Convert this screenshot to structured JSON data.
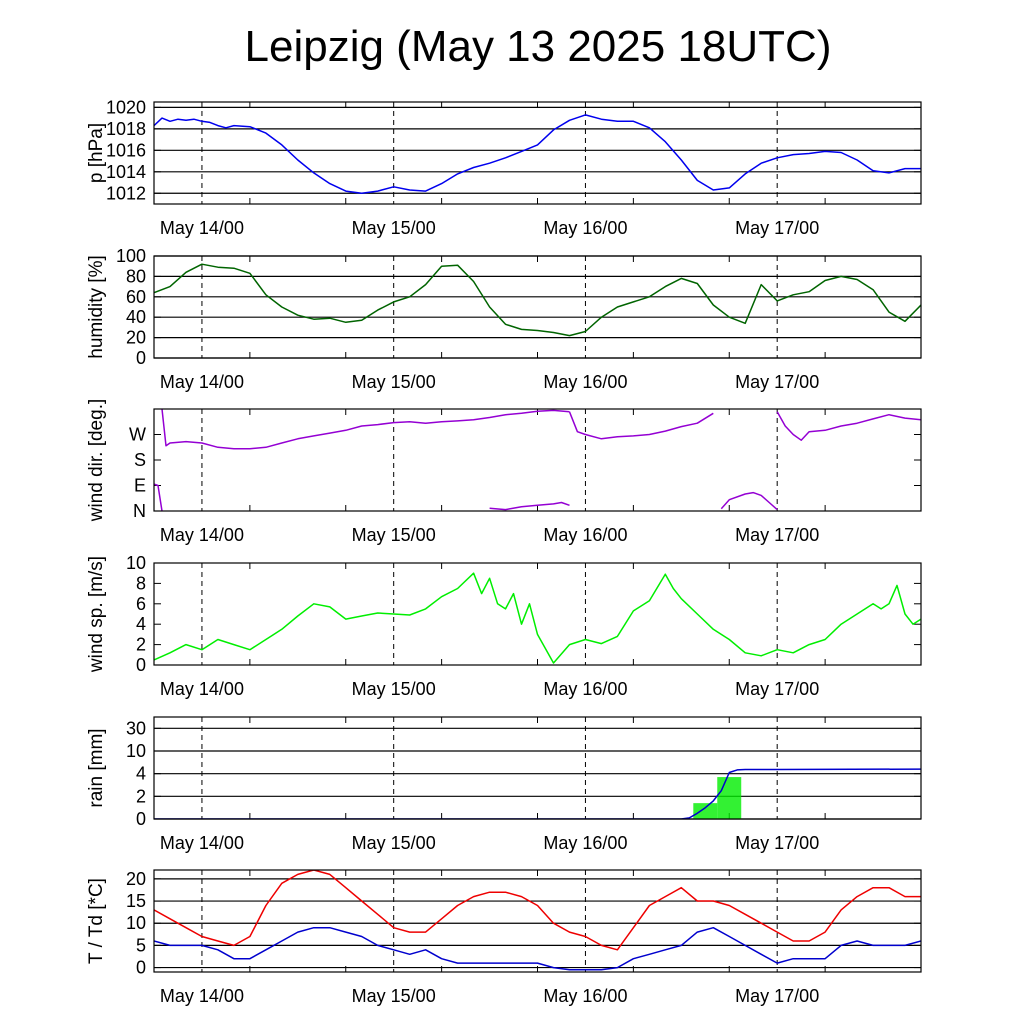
{
  "title": "Leipzig (May 13 2025 18UTC)",
  "x_axis": {
    "start": "May 13 18:00",
    "end": "May 17 18:00",
    "ticks": [
      "May 14/00",
      "May 15/00",
      "May 16/00",
      "May 17/00"
    ],
    "tick_hours": [
      6,
      30,
      54,
      78
    ],
    "total_hours": 96
  },
  "chart_data": [
    {
      "type": "line",
      "ylabel": "p [hPa]",
      "ylim": [
        1011,
        1020.5
      ],
      "yticks": [
        1012,
        1014,
        1016,
        1018,
        1020
      ],
      "grid": true,
      "series": [
        {
          "color": "#0000ee",
          "x": [
            0,
            1,
            2,
            3,
            4,
            5,
            6,
            7,
            8,
            9,
            10,
            12,
            14,
            16,
            18,
            20,
            22,
            24,
            26,
            28,
            30,
            32,
            34,
            36,
            38,
            40,
            42,
            44,
            46,
            48,
            50,
            52,
            54,
            56,
            58,
            60,
            62,
            64,
            66,
            68,
            70,
            72,
            74,
            76,
            78,
            80,
            82,
            84,
            86,
            88,
            90,
            92,
            94,
            96
          ],
          "y": [
            1018.3,
            1019.0,
            1018.7,
            1018.9,
            1018.8,
            1018.9,
            1018.7,
            1018.6,
            1018.3,
            1018.1,
            1018.3,
            1018.2,
            1017.6,
            1016.5,
            1015.1,
            1013.9,
            1012.9,
            1012.2,
            1012.0,
            1012.2,
            1012.6,
            1012.3,
            1012.2,
            1012.9,
            1013.8,
            1014.4,
            1014.8,
            1015.3,
            1015.9,
            1016.5,
            1017.9,
            1018.8,
            1019.3,
            1018.9,
            1018.7,
            1018.7,
            1018.1,
            1016.8,
            1015.1,
            1013.2,
            1012.3,
            1012.5,
            1013.8,
            1014.8,
            1015.3,
            1015.6,
            1015.7,
            1015.9,
            1015.8,
            1015.1,
            1014.1,
            1013.9,
            1014.3,
            1014.3
          ]
        }
      ]
    },
    {
      "type": "line",
      "ylabel": "humidity [%]",
      "ylim": [
        0,
        100
      ],
      "yticks": [
        0,
        20,
        40,
        60,
        80,
        100
      ],
      "grid": true,
      "series": [
        {
          "color": "#006400",
          "x": [
            0,
            2,
            4,
            6,
            8,
            10,
            12,
            14,
            16,
            18,
            20,
            22,
            24,
            26,
            28,
            30,
            32,
            34,
            36,
            38,
            40,
            42,
            44,
            46,
            48,
            50,
            52,
            54,
            56,
            58,
            60,
            62,
            64,
            66,
            68,
            70,
            72,
            74,
            76,
            78,
            80,
            82,
            84,
            86,
            88,
            90,
            92,
            94,
            96
          ],
          "y": [
            64,
            70,
            84,
            92,
            89,
            88,
            83,
            62,
            50,
            42,
            38,
            39,
            35,
            37,
            47,
            55,
            60,
            72,
            90,
            91,
            75,
            50,
            33,
            28,
            27,
            25,
            22,
            26,
            40,
            50,
            55,
            60,
            70,
            78,
            73,
            52,
            40,
            34,
            72,
            56,
            62,
            65,
            76,
            80,
            77,
            67,
            45,
            36,
            52
          ]
        }
      ]
    },
    {
      "type": "line",
      "ylabel": "wind dir. [deg.]",
      "ylim": [
        0,
        360
      ],
      "yticks": [
        0,
        90,
        180,
        270
      ],
      "ytick_labels": [
        "N",
        "E",
        "S",
        "W"
      ],
      "grid": false,
      "series": [
        {
          "color": "#9400d3",
          "segments": [
            {
              "x": [
                0,
                0.5,
                1
              ],
              "y": [
                95,
                90,
                0
              ]
            },
            {
              "x": [
                1,
                1.5,
                2,
                4,
                6,
                8,
                10,
                12,
                14,
                16,
                18,
                20,
                22,
                24,
                26,
                28,
                30,
                32,
                34,
                36,
                38,
                40,
                42,
                44,
                46,
                48,
                50,
                52
              ],
              "y": [
                360,
                230,
                240,
                245,
                240,
                225,
                220,
                220,
                225,
                240,
                255,
                265,
                275,
                285,
                300,
                305,
                312,
                315,
                310,
                315,
                318,
                322,
                330,
                340,
                345,
                352,
                355,
                350
              ]
            },
            {
              "x": [
                42,
                44,
                46,
                48,
                50,
                51,
                52
              ],
              "y": [
                10,
                5,
                15,
                20,
                25,
                30,
                20
              ]
            },
            {
              "x": [
                52,
                53,
                54,
                56,
                58,
                60,
                62,
                64,
                66,
                68,
                70
              ],
              "y": [
                350,
                280,
                270,
                255,
                262,
                265,
                270,
                282,
                298,
                310,
                345
              ]
            },
            {
              "x": [
                71,
                72,
                74,
                75,
                76,
                77,
                78
              ],
              "y": [
                8,
                40,
                60,
                65,
                55,
                30,
                5
              ]
            },
            {
              "x": [
                78,
                79,
                80,
                81,
                82,
                84,
                86,
                88,
                90,
                92,
                94,
                96
              ],
              "y": [
                350,
                300,
                270,
                250,
                280,
                285,
                300,
                310,
                325,
                340,
                328,
                322
              ]
            }
          ]
        }
      ]
    },
    {
      "type": "line",
      "ylabel": "wind sp. [m/s]",
      "ylim": [
        0,
        10
      ],
      "yticks": [
        0,
        2,
        4,
        6,
        8,
        10
      ],
      "grid": false,
      "series": [
        {
          "color": "#00ee00",
          "x": [
            0,
            2,
            4,
            6,
            8,
            10,
            12,
            14,
            16,
            18,
            20,
            22,
            24,
            26,
            28,
            30,
            32,
            34,
            36,
            38,
            40,
            41,
            42,
            43,
            44,
            45,
            46,
            47,
            48,
            50,
            52,
            54,
            56,
            58,
            60,
            62,
            64,
            65,
            66,
            68,
            70,
            72,
            74,
            76,
            78,
            80,
            82,
            84,
            86,
            88,
            90,
            91,
            92,
            93,
            94,
            95,
            96
          ],
          "y": [
            0.5,
            1.2,
            2.0,
            1.5,
            2.5,
            2.0,
            1.5,
            2.5,
            3.5,
            4.8,
            6.0,
            5.7,
            4.5,
            4.8,
            5.1,
            5.0,
            4.9,
            5.5,
            6.7,
            7.5,
            9.0,
            7.0,
            8.5,
            6.0,
            5.5,
            7.0,
            4.0,
            6.0,
            3.0,
            0.2,
            2.0,
            2.5,
            2.1,
            2.8,
            5.3,
            6.3,
            8.9,
            7.5,
            6.5,
            5.0,
            3.5,
            2.5,
            1.2,
            0.9,
            1.5,
            1.2,
            2.0,
            2.5,
            4.0,
            5.0,
            6.0,
            5.5,
            6.0,
            7.8,
            5.0,
            4.0,
            4.5
          ]
        }
      ]
    },
    {
      "type": "bar",
      "ylabel": "rain [mm]",
      "ytick_labels": [
        "0",
        "2",
        "4",
        "10",
        "30"
      ],
      "grid": true,
      "series": [
        {
          "color": "#00ee00",
          "bars": [
            {
              "x_start": 67.5,
              "x_end": 70.5,
              "value": 1.4
            },
            {
              "x_start": 70.5,
              "x_end": 73.5,
              "value": 3.7
            }
          ]
        },
        {
          "color": "#0000cd",
          "type": "line",
          "x": [
            0,
            66,
            67,
            68,
            69,
            70,
            71,
            72,
            73,
            74,
            78,
            96
          ],
          "y": [
            0,
            0,
            0.1,
            0.5,
            1.0,
            1.6,
            2.5,
            4.3,
            5.0,
            5.1,
            5.1,
            5.2
          ]
        }
      ]
    },
    {
      "type": "line",
      "ylabel": "T / Td [*C]",
      "ylim": [
        -1,
        22
      ],
      "yticks": [
        0,
        5,
        10,
        15,
        20
      ],
      "grid": true,
      "series": [
        {
          "color": "#ee0000",
          "x": [
            0,
            2,
            4,
            6,
            8,
            10,
            12,
            14,
            16,
            18,
            20,
            22,
            24,
            26,
            28,
            30,
            32,
            34,
            36,
            38,
            40,
            42,
            44,
            46,
            48,
            50,
            52,
            54,
            56,
            58,
            60,
            62,
            64,
            66,
            68,
            70,
            72,
            74,
            76,
            78,
            80,
            82,
            84,
            86,
            88,
            90,
            92,
            94,
            96
          ],
          "y": [
            13,
            11,
            9,
            7,
            6,
            5,
            7,
            14,
            19,
            21,
            22,
            21,
            18,
            15,
            12,
            9,
            8,
            8,
            11,
            14,
            16,
            17,
            17,
            16,
            14,
            10,
            8,
            7,
            5,
            4,
            9,
            14,
            16,
            18,
            15,
            15,
            14,
            12,
            10,
            8,
            6,
            6,
            8,
            13,
            16,
            18,
            18,
            16,
            16
          ]
        },
        {
          "color": "#0000cd",
          "x": [
            0,
            2,
            4,
            6,
            8,
            10,
            12,
            14,
            16,
            18,
            20,
            22,
            24,
            26,
            28,
            30,
            32,
            34,
            36,
            38,
            40,
            42,
            44,
            46,
            48,
            50,
            52,
            54,
            56,
            58,
            60,
            62,
            64,
            66,
            68,
            70,
            72,
            74,
            76,
            78,
            80,
            82,
            84,
            86,
            88,
            90,
            92,
            94,
            96
          ],
          "y": [
            6,
            5,
            5,
            5,
            4,
            2,
            2,
            4,
            6,
            8,
            9,
            9,
            8,
            7,
            5,
            4,
            3,
            4,
            2,
            1,
            1,
            1,
            1,
            1,
            1,
            0,
            -0.5,
            -0.5,
            -0.5,
            0,
            2,
            3,
            4,
            5,
            8,
            9,
            7,
            5,
            3,
            1,
            2,
            2,
            2,
            5,
            6,
            5,
            5,
            5,
            6
          ]
        }
      ]
    }
  ]
}
